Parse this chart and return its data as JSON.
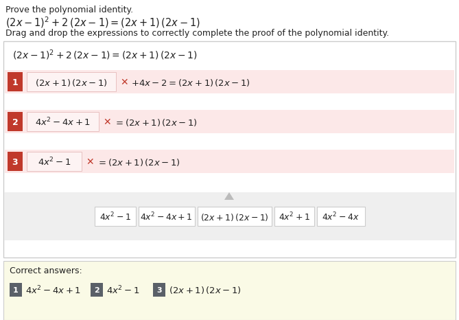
{
  "title_line1": "Prove the polynomial identity.",
  "title_line2": "$(2x-1)^2+2\\,(2x-1)=(2x+1)\\,(2x-1)$",
  "subtitle": "Drag and drop the expressions to correctly complete the proof of the polynomial identity.",
  "main_equation": "$(2x-1)^2+2\\,(2x-1)=(2x+1)\\,(2x-1)$",
  "rows": [
    {
      "num": "1",
      "box_expr": "$(2x+1)\\,(2x-1)$",
      "rest": "$+4x-2=(2x+1)\\,(2x-1)$"
    },
    {
      "num": "2",
      "box_expr": "$4x^2-4x+1$",
      "rest": "$=(2x+1)\\,(2x-1)$"
    },
    {
      "num": "3",
      "box_expr": "$4x^2-1$",
      "rest": "$=(2x+1)\\,(2x-1)$"
    }
  ],
  "drag_item_texts": [
    "$4x^2-1$",
    "$4x^2-4x+1$",
    "$(2x+1)\\,(2x-1)$",
    "$4x^2+1$",
    "$4x^2-4x$"
  ],
  "drag_widths": [
    60,
    82,
    108,
    58,
    70
  ],
  "correct_answers_label": "Correct answers:",
  "correct_answers": [
    {
      "num": "1",
      "text": "$4x^2-4x+1$"
    },
    {
      "num": "2",
      "text": "$4x^2-1$"
    },
    {
      "num": "3",
      "text": "$(2x+1)\\,(2x-1)$"
    }
  ],
  "bg_white": "#ffffff",
  "bg_light": "#efefef",
  "bg_yellow": "#fafae6",
  "border_color": "#cccccc",
  "red_badge": "#c0392b",
  "pink_row": "#fce8e8",
  "x_color": "#c0392b",
  "text_color": "#222222",
  "gray_badge": "#5a6068",
  "row_border": "#e8c0c0"
}
